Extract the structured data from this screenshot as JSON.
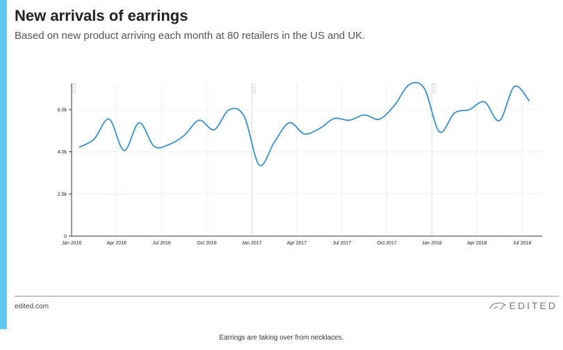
{
  "header": {
    "title": "New arrivals of earrings",
    "subtitle": "Based on new product arriving each month at 80 retailers in the US and UK."
  },
  "footer": {
    "site": "edited.com",
    "logo": "EDITED",
    "caption": "Earrings are taking over from necklaces."
  },
  "colors": {
    "line": "#3a8fcb",
    "accent_bar": "#5ec8f0"
  },
  "chart_data": {
    "type": "line",
    "title": "New arrivals of earrings",
    "xlabel": "",
    "ylabel": "",
    "ylim": [
      0,
      7250
    ],
    "y_ticks": [
      {
        "v": 0,
        "label": "0"
      },
      {
        "v": 2000,
        "label": "2.0k"
      },
      {
        "v": 4000,
        "label": "4.0k"
      },
      {
        "v": 6000,
        "label": "6.0k"
      }
    ],
    "x_ticks": [
      {
        "m": 0,
        "label": "Jan 2016"
      },
      {
        "m": 3,
        "label": "Apr 2016"
      },
      {
        "m": 6,
        "label": "Jul 2016"
      },
      {
        "m": 9,
        "label": "Oct 2016"
      },
      {
        "m": 12,
        "label": "Jan 2017"
      },
      {
        "m": 15,
        "label": "Apr 2017"
      },
      {
        "m": 18,
        "label": "Jul 2017"
      },
      {
        "m": 21,
        "label": "Oct 2017"
      },
      {
        "m": 24,
        "label": "Jan 2018"
      },
      {
        "m": 27,
        "label": "Apr 2018"
      },
      {
        "m": 30,
        "label": "Jul 2018"
      }
    ],
    "year_markers": [
      {
        "m": 0,
        "label": "2016"
      },
      {
        "m": 12,
        "label": "2017"
      },
      {
        "m": 24,
        "label": "2018"
      }
    ],
    "grid": true,
    "series": [
      {
        "name": "Earrings",
        "x_start": "Jan 2016",
        "values": [
          4220,
          4600,
          5550,
          4060,
          5380,
          4260,
          4350,
          4780,
          5500,
          5050,
          6000,
          5680,
          3370,
          4450,
          5380,
          4850,
          5100,
          5580,
          5500,
          5750,
          5550,
          6200,
          7190,
          7000,
          4950,
          5840,
          6000,
          6370,
          5480,
          7100,
          6400
        ]
      }
    ]
  }
}
